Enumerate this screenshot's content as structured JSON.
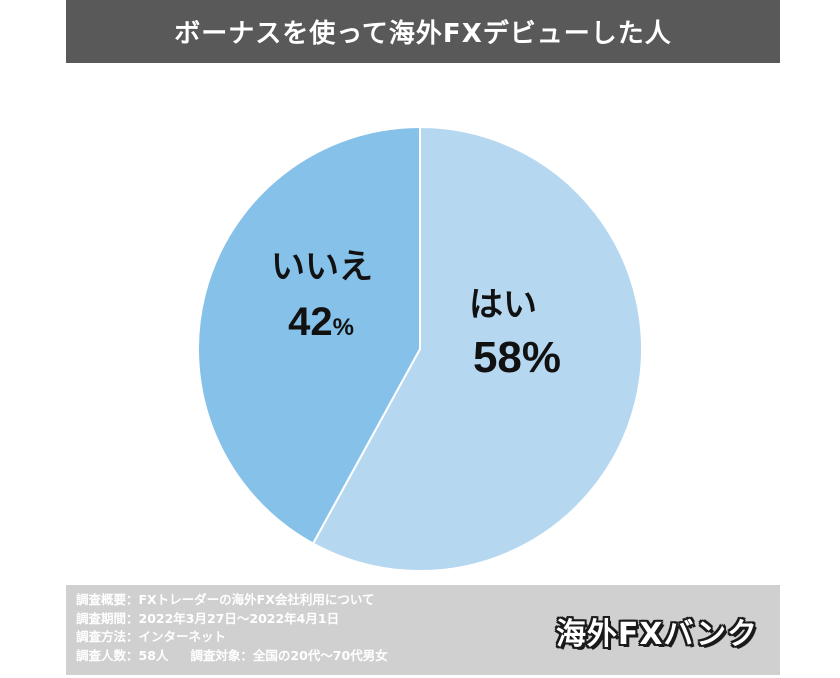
{
  "chart_data": {
    "type": "pie",
    "title": "ボーナスを使って海外FXデビューした人",
    "slices": [
      {
        "label": "はい",
        "value": 58,
        "display": "58%",
        "color": "#b5d7f0"
      },
      {
        "label": "いいえ",
        "value": 42,
        "display": "42",
        "unit": "%",
        "color": "#86c1e9"
      }
    ],
    "start": "12 o'clock",
    "direction": "clockwise",
    "edge_color": "#ffffff"
  },
  "survey": {
    "overview": "調査概要：FXトレーダーの海外FX会社利用について",
    "period": "調査期間：2022年3月27日～2022年4月1日",
    "method": "調査方法：インターネット",
    "count": "調査人数：58人",
    "target": "調査対象：全国の20代～70代男女"
  },
  "logo": "海外FXバンク",
  "colors": {
    "title_bg": "#595959",
    "footer_bg": "#d0d0d0"
  }
}
